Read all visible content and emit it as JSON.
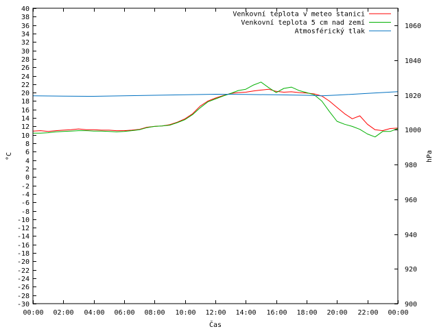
{
  "chart_data": {
    "type": "line",
    "title": "",
    "xlabel": "Čas",
    "ylabel": "°C",
    "y2label": "hPa",
    "xlim": [
      0,
      24
    ],
    "ylim": [
      -30,
      40
    ],
    "y2lim": [
      900,
      1070
    ],
    "x_ticks": [
      {
        "value": 0,
        "label": "00:00"
      },
      {
        "value": 2,
        "label": "02:00"
      },
      {
        "value": 4,
        "label": "04:00"
      },
      {
        "value": 6,
        "label": "06:00"
      },
      {
        "value": 8,
        "label": "08:00"
      },
      {
        "value": 10,
        "label": "10:00"
      },
      {
        "value": 12,
        "label": "12:00"
      },
      {
        "value": 14,
        "label": "14:00"
      },
      {
        "value": 16,
        "label": "16:00"
      },
      {
        "value": 18,
        "label": "18:00"
      },
      {
        "value": 20,
        "label": "20:00"
      },
      {
        "value": 22,
        "label": "22:00"
      },
      {
        "value": 24,
        "label": "00:00"
      }
    ],
    "y_ticks": [
      40,
      38,
      36,
      34,
      32,
      30,
      28,
      26,
      24,
      22,
      20,
      18,
      16,
      14,
      12,
      10,
      8,
      6,
      4,
      2,
      0,
      -2,
      -4,
      -6,
      -8,
      -10,
      -12,
      -14,
      -16,
      -18,
      -20,
      -22,
      -24,
      -26,
      -28,
      -30
    ],
    "y2_ticks": [
      1060,
      1040,
      1020,
      1000,
      980,
      960,
      940,
      920,
      900
    ],
    "grid": false,
    "legend": "top-right",
    "series": [
      {
        "name": "Venkovní teplota v meteo stanici",
        "color": "#ff0000",
        "axis": "left",
        "points": [
          [
            0,
            10.9
          ],
          [
            0.5,
            11.0
          ],
          [
            1.0,
            10.8
          ],
          [
            1.5,
            11.0
          ],
          [
            2.0,
            11.1
          ],
          [
            2.5,
            11.2
          ],
          [
            3.0,
            11.4
          ],
          [
            3.5,
            11.2
          ],
          [
            4.0,
            11.2
          ],
          [
            4.5,
            11.1
          ],
          [
            5.0,
            11.1
          ],
          [
            5.5,
            11.0
          ],
          [
            6.0,
            11.0
          ],
          [
            6.5,
            11.1
          ],
          [
            7.0,
            11.3
          ],
          [
            7.5,
            11.8
          ],
          [
            8.0,
            12.0
          ],
          [
            8.5,
            12.1
          ],
          [
            9.0,
            12.4
          ],
          [
            9.5,
            13.0
          ],
          [
            10.0,
            13.8
          ],
          [
            10.5,
            15.0
          ],
          [
            11.0,
            16.8
          ],
          [
            11.5,
            18.0
          ],
          [
            12.0,
            18.7
          ],
          [
            12.5,
            19.3
          ],
          [
            13.0,
            19.8
          ],
          [
            13.5,
            20.0
          ],
          [
            14.0,
            20.1
          ],
          [
            14.5,
            20.4
          ],
          [
            15.0,
            20.6
          ],
          [
            15.5,
            20.8
          ],
          [
            16.0,
            20.3
          ],
          [
            16.5,
            20.1
          ],
          [
            17.0,
            20.2
          ],
          [
            17.5,
            20.0
          ],
          [
            18.0,
            19.9
          ],
          [
            18.5,
            19.7
          ],
          [
            19.0,
            19.2
          ],
          [
            19.5,
            18.0
          ],
          [
            20.0,
            16.5
          ],
          [
            20.5,
            15.0
          ],
          [
            21.0,
            13.8
          ],
          [
            21.5,
            14.5
          ],
          [
            22.0,
            12.5
          ],
          [
            22.5,
            11.2
          ],
          [
            23.0,
            11.0
          ],
          [
            23.5,
            11.5
          ],
          [
            24.0,
            11.6
          ]
        ]
      },
      {
        "name": "Venkovní teplota 5 cm nad zemí",
        "color": "#00b000",
        "axis": "left",
        "points": [
          [
            0,
            10.4
          ],
          [
            0.5,
            10.4
          ],
          [
            1.0,
            10.5
          ],
          [
            1.5,
            10.7
          ],
          [
            2.0,
            10.8
          ],
          [
            2.5,
            10.9
          ],
          [
            3.0,
            11.0
          ],
          [
            3.5,
            11.0
          ],
          [
            4.0,
            10.9
          ],
          [
            4.5,
            10.9
          ],
          [
            5.0,
            10.8
          ],
          [
            5.5,
            10.7
          ],
          [
            6.0,
            10.8
          ],
          [
            6.5,
            11.0
          ],
          [
            7.0,
            11.2
          ],
          [
            7.5,
            11.7
          ],
          [
            8.0,
            12.0
          ],
          [
            8.5,
            12.1
          ],
          [
            9.0,
            12.3
          ],
          [
            9.5,
            12.9
          ],
          [
            10.0,
            13.6
          ],
          [
            10.5,
            14.8
          ],
          [
            11.0,
            16.4
          ],
          [
            11.5,
            17.8
          ],
          [
            12.0,
            18.5
          ],
          [
            12.5,
            19.2
          ],
          [
            13.0,
            19.8
          ],
          [
            13.5,
            20.5
          ],
          [
            14.0,
            20.8
          ],
          [
            14.5,
            21.8
          ],
          [
            15.0,
            22.5
          ],
          [
            15.5,
            21.2
          ],
          [
            16.0,
            20.0
          ],
          [
            16.5,
            21.0
          ],
          [
            17.0,
            21.3
          ],
          [
            17.5,
            20.5
          ],
          [
            18.0,
            20.0
          ],
          [
            18.5,
            19.5
          ],
          [
            19.0,
            18.0
          ],
          [
            19.5,
            15.5
          ],
          [
            20.0,
            13.2
          ],
          [
            20.5,
            12.5
          ],
          [
            21.0,
            12.0
          ],
          [
            21.5,
            11.3
          ],
          [
            22.0,
            10.2
          ],
          [
            22.5,
            9.5
          ],
          [
            23.0,
            10.8
          ],
          [
            23.5,
            10.8
          ],
          [
            24.0,
            11.5
          ]
        ]
      },
      {
        "name": "Atmosférický tlak",
        "color": "#0070c0",
        "axis": "right",
        "points": [
          [
            0,
            1019.6
          ],
          [
            2.0,
            1019.4
          ],
          [
            4.0,
            1019.3
          ],
          [
            6.0,
            1019.6
          ],
          [
            8.0,
            1019.9
          ],
          [
            10.0,
            1020.2
          ],
          [
            12.0,
            1020.5
          ],
          [
            14.0,
            1020.4
          ],
          [
            16.0,
            1020.2
          ],
          [
            18.0,
            1019.9
          ],
          [
            19.0,
            1019.6
          ],
          [
            20.0,
            1020.0
          ],
          [
            22.0,
            1021.0
          ],
          [
            24.0,
            1022.0
          ]
        ]
      }
    ]
  }
}
